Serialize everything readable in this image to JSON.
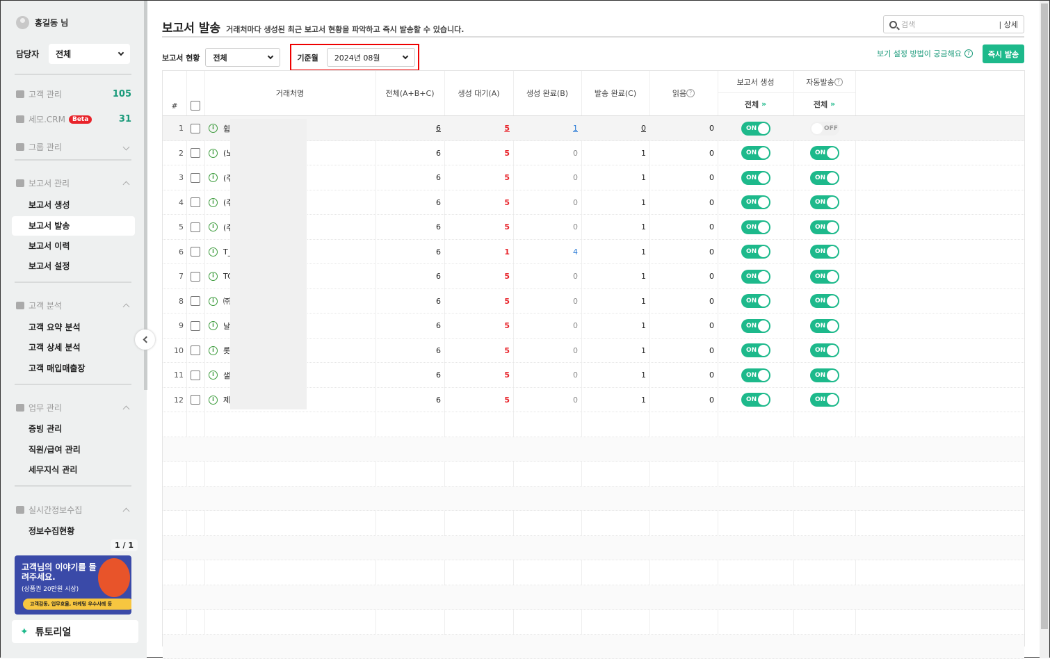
{
  "sidebar": {
    "user": "홍길동 님",
    "manager_label": "담당자",
    "manager_value": "전체",
    "customer_mgmt": {
      "label": "고객 관리",
      "count": "105"
    },
    "crm": {
      "label": "세모.CRM",
      "badge": "Beta",
      "count": "31"
    },
    "group_mgmt": "그룹 관리",
    "report_mgmt": {
      "label": "보고서 관리",
      "items": [
        "보고서 생성",
        "보고서 발송",
        "보고서 이력",
        "보고서 설정"
      ]
    },
    "customer_analysis": {
      "label": "고객 분석",
      "items": [
        "고객 요약 분석",
        "고객 상세 분석",
        "고객 매입매출장"
      ]
    },
    "work_mgmt": {
      "label": "업무 관리",
      "items": [
        "증빙 관리",
        "직원/급여 관리",
        "세무지식 관리"
      ]
    },
    "realtime": {
      "label": "실시간정보수집",
      "items": [
        "정보수집현황"
      ]
    },
    "pager": "1 / 1",
    "banner": {
      "title": "고객님의 이야기를 들려주세요.",
      "sub": "(상품권 20만원 시상)",
      "bar": "고객감동, 업무효율, 마케팅 우수사례 등"
    },
    "tutorial": "튜토리얼"
  },
  "header": {
    "title": "보고서 발송",
    "desc": "거래처마다 생성된 최근 보고서 현황을 파악하고 즉시 발송할 수 있습니다.",
    "search_placeholder": "검색",
    "search_detail": "| 상세"
  },
  "filters": {
    "status_label": "보고서 현황",
    "status_value": "전체",
    "month_label": "기준월",
    "month_value": "2024년 08월",
    "help": "보기 설정 방법이 궁금해요",
    "send_now": "즉시 발송"
  },
  "table": {
    "headers": {
      "num": "#",
      "name": "거래처명",
      "total": "전체(A+B+C)",
      "pending": "생성 대기(A)",
      "created": "생성 완료(B)",
      "sent": "발송 완료(C)",
      "read": "읽음",
      "gen": "보고서 생성",
      "auto": "자동발송",
      "all": "전체"
    },
    "rows": [
      {
        "n": "1",
        "name": "휨",
        "total": "6",
        "a": "5",
        "b": "1",
        "c": "0",
        "read": "0",
        "gen": "ON",
        "auto": "OFF"
      },
      {
        "n": "2",
        "name": "(노",
        "total": "6",
        "a": "5",
        "b": "0",
        "c": "1",
        "read": "0",
        "gen": "ON",
        "auto": "ON"
      },
      {
        "n": "3",
        "name": "(주",
        "total": "6",
        "a": "5",
        "b": "0",
        "c": "1",
        "read": "0",
        "gen": "ON",
        "auto": "ON"
      },
      {
        "n": "4",
        "name": "(주",
        "total": "6",
        "a": "5",
        "b": "0",
        "c": "1",
        "read": "0",
        "gen": "ON",
        "auto": "ON"
      },
      {
        "n": "5",
        "name": "(주",
        "total": "6",
        "a": "5",
        "b": "0",
        "c": "1",
        "read": "0",
        "gen": "ON",
        "auto": "ON"
      },
      {
        "n": "6",
        "name": "T_",
        "total": "6",
        "a": "1",
        "b": "4",
        "c": "1",
        "read": "0",
        "gen": "ON",
        "auto": "ON"
      },
      {
        "n": "7",
        "name": "TC",
        "total": "6",
        "a": "5",
        "b": "0",
        "c": "1",
        "read": "0",
        "gen": "ON",
        "auto": "ON"
      },
      {
        "n": "8",
        "name": "㈜",
        "total": "6",
        "a": "5",
        "b": "0",
        "c": "1",
        "read": "0",
        "gen": "ON",
        "auto": "ON"
      },
      {
        "n": "9",
        "name": "날",
        "total": "6",
        "a": "5",
        "b": "0",
        "c": "1",
        "read": "0",
        "gen": "ON",
        "auto": "ON"
      },
      {
        "n": "10",
        "name": "롯",
        "total": "6",
        "a": "5",
        "b": "0",
        "c": "1",
        "read": "0",
        "gen": "ON",
        "auto": "ON"
      },
      {
        "n": "11",
        "name": "샐",
        "total": "6",
        "a": "5",
        "b": "0",
        "c": "1",
        "read": "0",
        "gen": "ON",
        "auto": "ON"
      },
      {
        "n": "12",
        "name": "제",
        "total": "6",
        "a": "5",
        "b": "0",
        "c": "1",
        "read": "0",
        "gen": "ON",
        "auto": "ON"
      }
    ]
  },
  "colors": {
    "accent": "#1db98b",
    "red": "#e8232a",
    "blue": "#2a7ad6"
  }
}
